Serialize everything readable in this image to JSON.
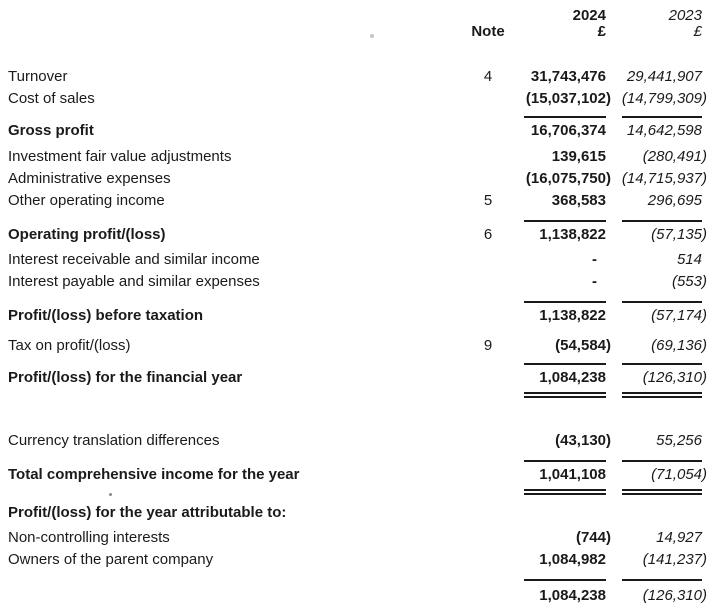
{
  "statement": {
    "header": {
      "note_label": "Note",
      "col_2024": {
        "year": "2024",
        "currency": "£"
      },
      "col_2023": {
        "year": "2023",
        "currency": "£"
      }
    },
    "rows": [
      {
        "type": "item",
        "label": "Turnover",
        "note": "4",
        "v2024": "31,743,476",
        "v2023": "29,441,907",
        "gap": 26
      },
      {
        "type": "item",
        "label": "Cost of sales",
        "v2024": "(15,037,102)",
        "v2023": "(14,799,309)"
      },
      {
        "type": "rule",
        "gap": 6
      },
      {
        "type": "total",
        "label": "Gross profit",
        "v2024": "16,706,374",
        "v2023": "14,642,598",
        "gap": 2
      },
      {
        "type": "item",
        "label": "Investment fair value adjustments",
        "v2024": "139,615",
        "v2023": "(280,491)",
        "gap": 4
      },
      {
        "type": "item",
        "label": "Administrative expenses",
        "v2024": "(16,075,750)",
        "v2023": "(14,715,937)"
      },
      {
        "type": "item",
        "label": "Other operating income",
        "note": "5",
        "v2024": "368,583",
        "v2023": "296,695"
      },
      {
        "type": "rule",
        "gap": 8
      },
      {
        "type": "total",
        "label": "Operating profit/(loss)",
        "note": "6",
        "v2024": "1,138,822",
        "v2023": "(57,135)",
        "gap": 2
      },
      {
        "type": "item",
        "label": "Interest receivable and similar income",
        "v2024": "-",
        "v2023": "514",
        "gap": 3
      },
      {
        "type": "item",
        "label": "Interest payable and similar expenses",
        "v2024": "-",
        "v2023": "(553)"
      },
      {
        "type": "rule",
        "gap": 8
      },
      {
        "type": "total",
        "label": "Profit/(loss) before taxation",
        "v2024": "1,138,822",
        "v2023": "(57,174)",
        "gap": 2
      },
      {
        "type": "item",
        "label": "Tax on profit/(loss)",
        "note": "9",
        "v2024": "(54,584)",
        "v2023": "(69,136)",
        "gap": 8
      },
      {
        "type": "rule",
        "gap": 6
      },
      {
        "type": "total",
        "label": "Profit/(loss) for the financial year",
        "v2024": "1,084,238",
        "v2023": "(126,310)",
        "gap": 2
      },
      {
        "type": "rule2",
        "gap": 3
      },
      {
        "type": "item",
        "label": "Currency translation differences",
        "v2024": "(43,130)",
        "v2023": "55,256",
        "gap": 32
      },
      {
        "type": "rule",
        "gap": 8
      },
      {
        "type": "total",
        "label": "Total comprehensive income for the year",
        "v2024": "1,041,108",
        "v2023": "(71,054)",
        "gap": 2
      },
      {
        "type": "rule2",
        "gap": 3
      },
      {
        "type": "heading",
        "label": "Profit/(loss) for the year attributable to:",
        "gap": 7
      },
      {
        "type": "item",
        "label": "Non-controlling interests",
        "v2024": "(744)",
        "v2023": "14,927",
        "gap": 3
      },
      {
        "type": "item",
        "label": "Owners of the parent company",
        "v2024": "1,084,982",
        "v2023": "(141,237)"
      },
      {
        "type": "rule",
        "gap": 8
      },
      {
        "type": "total",
        "label": "",
        "v2024": "1,084,238",
        "v2023": "(126,310)",
        "gap": 4
      }
    ]
  }
}
